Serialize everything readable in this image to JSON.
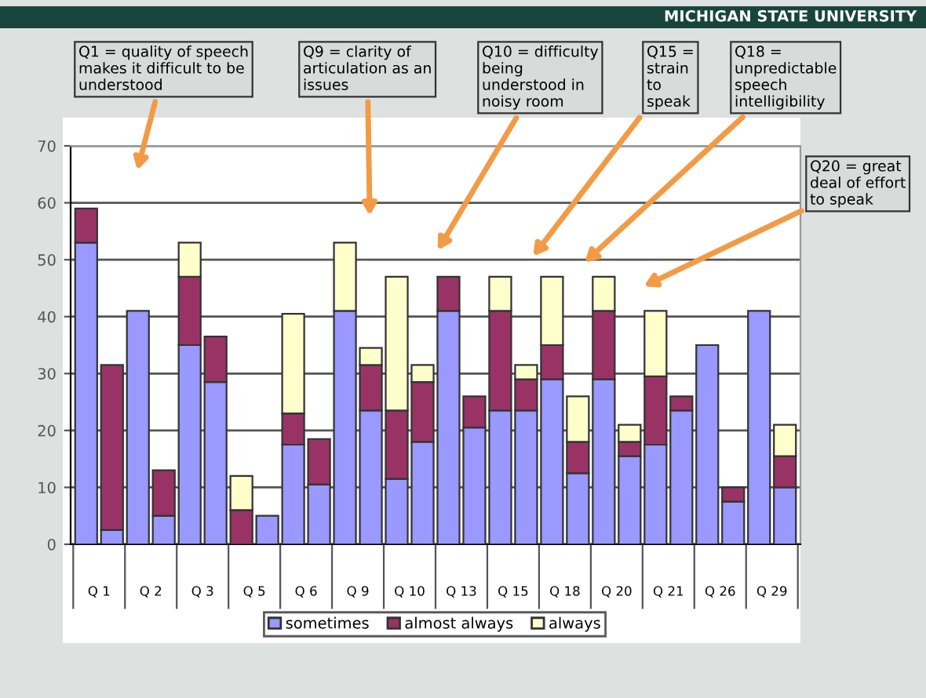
{
  "chart_data": {
    "type": "bar",
    "stacked": true,
    "categories": [
      null,
      null,
      null,
      null,
      null,
      null,
      null,
      null,
      null,
      null,
      null,
      null,
      null,
      null,
      null,
      null,
      null,
      null,
      null,
      null,
      null,
      null,
      null,
      null,
      null,
      null,
      null,
      null
    ],
    "series": [
      {
        "name": "sometimes",
        "color": "#9999ff",
        "values": [
          53,
          2.5,
          41,
          5,
          35,
          28.5,
          0,
          5,
          17.5,
          10.5,
          41,
          23.5,
          11.5,
          18,
          41,
          20.5,
          23.5,
          23.5,
          29,
          12.5,
          29,
          15.5,
          17.5,
          23.5,
          35,
          7.5,
          41,
          10
        ]
      },
      {
        "name": "almost always",
        "color": "#993366",
        "values": [
          6,
          29,
          0,
          8,
          12,
          8,
          6,
          0,
          5.5,
          8,
          0,
          8,
          12,
          10.5,
          6,
          5.5,
          17.5,
          5.5,
          6,
          5.5,
          12,
          2.5,
          12,
          2.5,
          0,
          2.5,
          0,
          5.5
        ]
      },
      {
        "name": "always",
        "color": "#ffffcc",
        "values": [
          0,
          0,
          0,
          0,
          6,
          0,
          6,
          0,
          17.5,
          0,
          12,
          3,
          23.5,
          3,
          0,
          0,
          6,
          2.5,
          12,
          8,
          6,
          3,
          11.5,
          0,
          0,
          0,
          0,
          5.5
        ]
      }
    ],
    "ylim": [
      0,
      70
    ],
    "yticks": [
      0,
      10,
      20,
      30,
      40,
      50,
      60,
      70
    ],
    "grid": "y",
    "legend": "bottom",
    "annotations": [
      "Q1 = quality of speech makes it difficult to be understood",
      "Q9 = clarity of articulation as an issues",
      "Q10 = difficulty being understood in noisy room",
      "Q15 = strain to speak",
      "Q18 = unpredictable speech intelligibility",
      "Q20 = great deal of effort to speak",
      "MICHIGAN STATE UNIVERSITY",
      "Q 1",
      "Q 2",
      "Q 3",
      "Q 5",
      "Q 6",
      "Q 9",
      "Q 10",
      "Q 13",
      "Q 15",
      "Q 18",
      "Q 20",
      "Q 21",
      "Q 26",
      "Q 29"
    ]
  }
}
